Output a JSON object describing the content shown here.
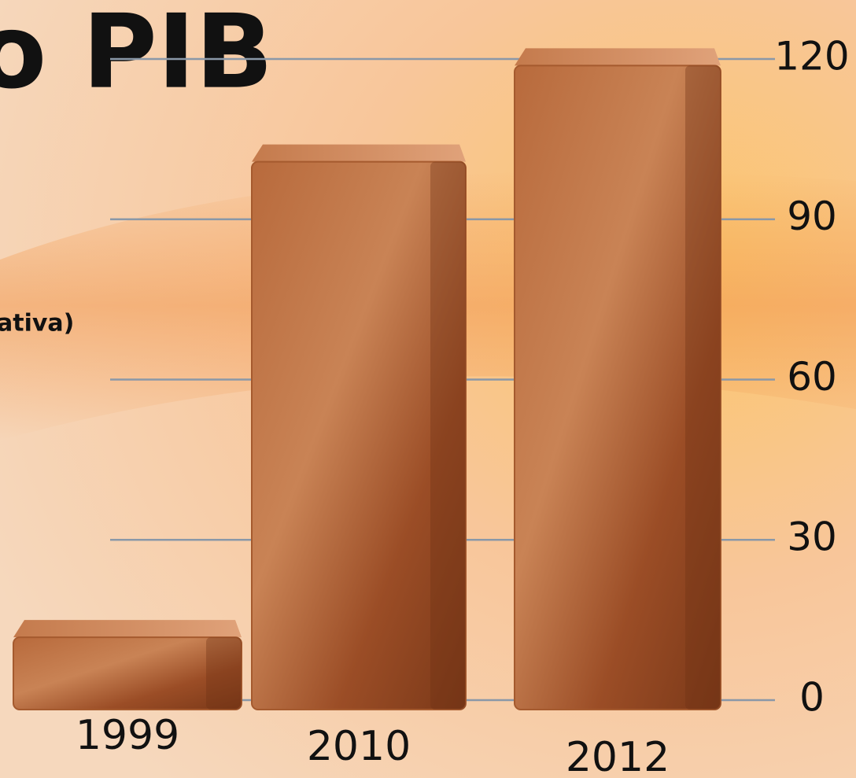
{
  "chart_data": {
    "type": "bar",
    "title": "o PIB",
    "subtitle": "ativa)",
    "categories": [
      "1999",
      "2010",
      "2012"
    ],
    "values": [
      15,
      104,
      122
    ],
    "color": "#a55a2e",
    "ylim": [
      0,
      125
    ],
    "yticks": [
      0,
      30,
      60,
      90,
      120
    ],
    "grid": true
  }
}
